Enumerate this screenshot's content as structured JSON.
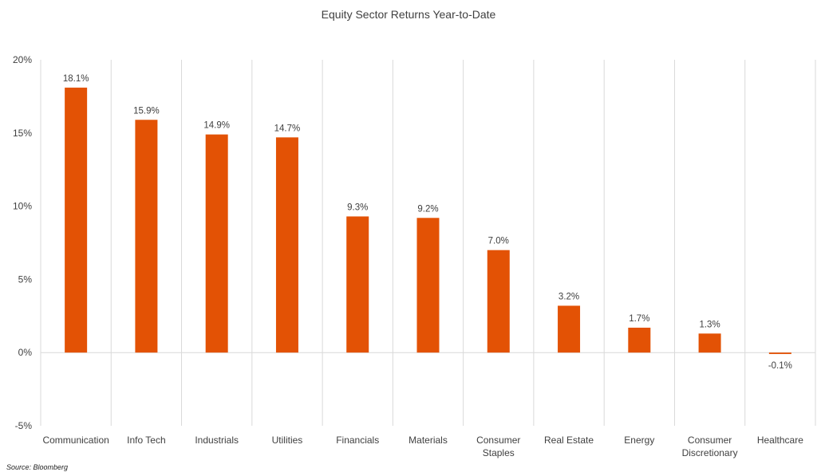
{
  "chart_data": {
    "type": "bar",
    "title": "Equity Sector Returns Year-to-Date",
    "categories": [
      "Communication",
      "Info Tech",
      "Industrials",
      "Utilities",
      "Financials",
      "Materials",
      "Consumer Staples",
      "Real Estate",
      "Energy",
      "Consumer Discretionary",
      "Healthcare"
    ],
    "category_lines": [
      [
        "Communication"
      ],
      [
        "Info Tech"
      ],
      [
        "Industrials"
      ],
      [
        "Utilities"
      ],
      [
        "Financials"
      ],
      [
        "Materials"
      ],
      [
        "Consumer",
        "Staples"
      ],
      [
        "Real Estate"
      ],
      [
        "Energy"
      ],
      [
        "Consumer",
        "Discretionary"
      ],
      [
        "Healthcare"
      ]
    ],
    "values": [
      18.1,
      15.9,
      14.9,
      14.7,
      9.3,
      9.2,
      7.0,
      3.2,
      1.7,
      1.3,
      -0.1
    ],
    "data_labels": [
      "18.1%",
      "15.9%",
      "14.9%",
      "14.7%",
      "9.3%",
      "9.2%",
      "7.0%",
      "3.2%",
      "1.7%",
      "1.3%",
      "-0.1%"
    ],
    "ylim": [
      -5,
      20
    ],
    "yticks": [
      -5,
      0,
      5,
      10,
      15,
      20
    ],
    "ytick_labels": [
      "-5%",
      "0%",
      "5%",
      "10%",
      "15%",
      "20%"
    ],
    "xlabel": "",
    "ylabel": "",
    "grid": "vertical separators",
    "bar_color": "#E35205",
    "grid_color": "#d9d9d9"
  },
  "source_note": "Source: Bloomberg"
}
